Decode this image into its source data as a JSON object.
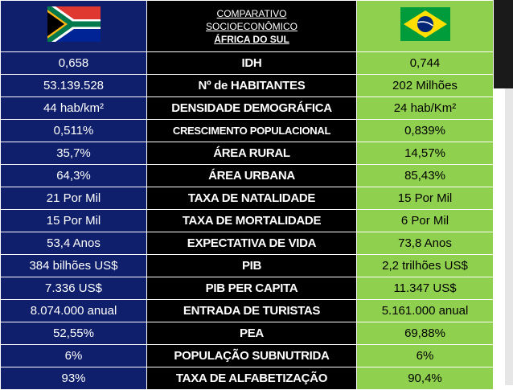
{
  "header": {
    "title_line1": "COMPARATIVO",
    "title_line2": "SOCIOECONÔMICO",
    "title_line3": "ÁFRICA DO SUL",
    "left_flag_icon": "south-africa-flag-icon",
    "right_flag_icon": "brazil-flag-icon"
  },
  "colors": {
    "south_africa_column": "#0f1f6b",
    "indicator_column": "#000000",
    "brazil_column": "#8fd14f"
  },
  "rows": [
    {
      "south_africa": "0,658",
      "indicator": "IDH",
      "brazil": "0,744"
    },
    {
      "south_africa": "53.139.528",
      "indicator": "Nº de HABITANTES",
      "brazil": "202 Milhões"
    },
    {
      "south_africa": "44 hab/km²",
      "indicator": "DENSIDADE DEMOGRÁFICA",
      "brazil": "24 hab/Km²"
    },
    {
      "south_africa": "0,511%",
      "indicator": "CRESCIMENTO POPULACIONAL",
      "brazil": "0,839%"
    },
    {
      "south_africa": "35,7%",
      "indicator": "ÁREA RURAL",
      "brazil": "14,57%"
    },
    {
      "south_africa": "64,3%",
      "indicator": "ÁREA URBANA",
      "brazil": "85,43%"
    },
    {
      "south_africa": "21 Por Mil",
      "indicator": "TAXA DE NATALIDADE",
      "brazil": "15 Por Mil"
    },
    {
      "south_africa": "15 Por Mil",
      "indicator": "TAXA DE MORTALIDADE",
      "brazil": "6 Por Mil"
    },
    {
      "south_africa": "53,4 Anos",
      "indicator": "EXPECTATIVA DE VIDA",
      "brazil": "73,8 Anos"
    },
    {
      "south_africa": "384 bilhões US$",
      "indicator": "PIB",
      "brazil": "2,2 trilhões US$"
    },
    {
      "south_africa": "7.336 US$",
      "indicator": "PIB PER CAPITA",
      "brazil": "11.347 US$"
    },
    {
      "south_africa": "8.074.000 anual",
      "indicator": "ENTRADA DE TURISTAS",
      "brazil": "5.161.000 anual"
    },
    {
      "south_africa": "52,55%",
      "indicator": "PEA",
      "brazil": "69,88%"
    },
    {
      "south_africa": "6%",
      "indicator": "POPULAÇÃO SUBNUTRIDA",
      "brazil": "6%"
    },
    {
      "south_africa": "93%",
      "indicator": "TAXA DE ALFABETIZAÇÃO",
      "brazil": "90,4%"
    }
  ]
}
